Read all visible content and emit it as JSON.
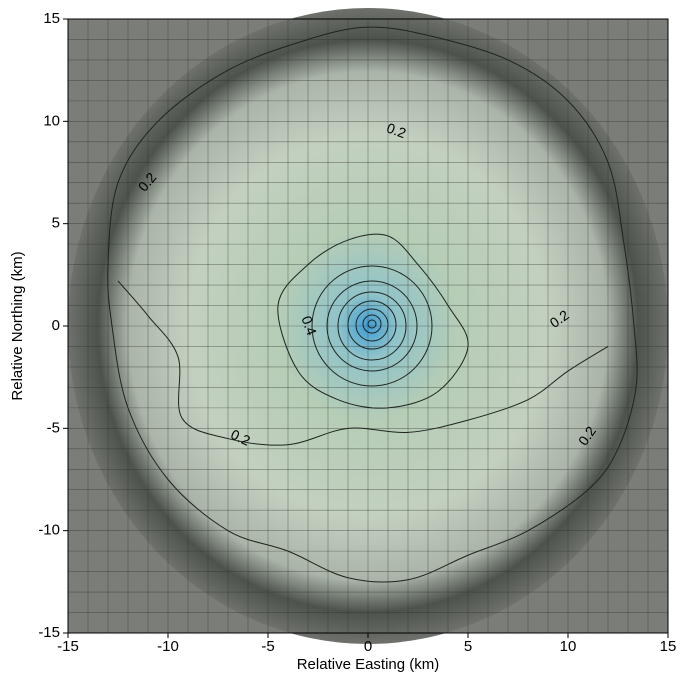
{
  "chart_data": {
    "type": "contour",
    "xlabel": "Relative Easting (km)",
    "ylabel": "Relative Northing (km)",
    "xlim": [
      -15,
      15
    ],
    "ylim": [
      -15,
      15
    ],
    "xticks": [
      -15,
      -10,
      -5,
      0,
      5,
      10,
      15
    ],
    "yticks": [
      -15,
      -10,
      -5,
      0,
      5,
      10,
      15
    ],
    "minor_grid_step": 1,
    "contours": [
      {
        "level": 0.2,
        "points": [
          [
            -13,
            3
          ],
          [
            -12.5,
            7
          ],
          [
            -10.5,
            10
          ],
          [
            -7,
            12.5
          ],
          [
            -3,
            14
          ],
          [
            0,
            14.6
          ],
          [
            3,
            14.2
          ],
          [
            7,
            13
          ],
          [
            10,
            11
          ],
          [
            12,
            8
          ],
          [
            12.8,
            4
          ],
          [
            13.3,
            0
          ],
          [
            13.4,
            -3
          ],
          [
            12.5,
            -6
          ],
          [
            11,
            -8
          ],
          [
            8,
            -10
          ],
          [
            5,
            -11.2
          ],
          [
            2,
            -12.4
          ],
          [
            -1,
            -12.3
          ],
          [
            -4,
            -11
          ],
          [
            -7,
            -10
          ],
          [
            -10,
            -7.5
          ],
          [
            -12,
            -4
          ],
          [
            -12.8,
            0
          ]
        ]
      },
      {
        "level": 0.2,
        "points": [
          [
            -12.5,
            2.2
          ],
          [
            -11,
            0.5
          ],
          [
            -9.5,
            -1.5
          ],
          [
            -9.3,
            -4.5
          ],
          [
            -7,
            -5.5
          ],
          [
            -4,
            -5.8
          ],
          [
            -1,
            -5
          ],
          [
            2,
            -5.2
          ],
          [
            5,
            -4.6
          ],
          [
            8,
            -3.6
          ],
          [
            10,
            -2.2
          ],
          [
            12,
            -1
          ]
        ]
      },
      {
        "level": 0.4,
        "points": [
          [
            -4.5,
            1
          ],
          [
            -3,
            3
          ],
          [
            -1,
            4.2
          ],
          [
            1,
            4.4
          ],
          [
            2.5,
            3
          ],
          [
            4,
            1
          ],
          [
            5,
            -1
          ],
          [
            3.5,
            -3.2
          ],
          [
            1,
            -4
          ],
          [
            -1.5,
            -3.6
          ],
          [
            -3.5,
            -2.2
          ]
        ]
      }
    ],
    "contour_labels": [
      {
        "value": 0.2,
        "x": -11,
        "y": 7
      },
      {
        "value": 0.2,
        "x": 1.4,
        "y": 9.5
      },
      {
        "value": 0.2,
        "x": 9.6,
        "y": 0.3
      },
      {
        "value": 0.2,
        "x": 11,
        "y": -5.4
      },
      {
        "value": 0.2,
        "x": -6.4,
        "y": -5.5
      },
      {
        "value": 0.4,
        "x": -3,
        "y": 0
      }
    ]
  }
}
